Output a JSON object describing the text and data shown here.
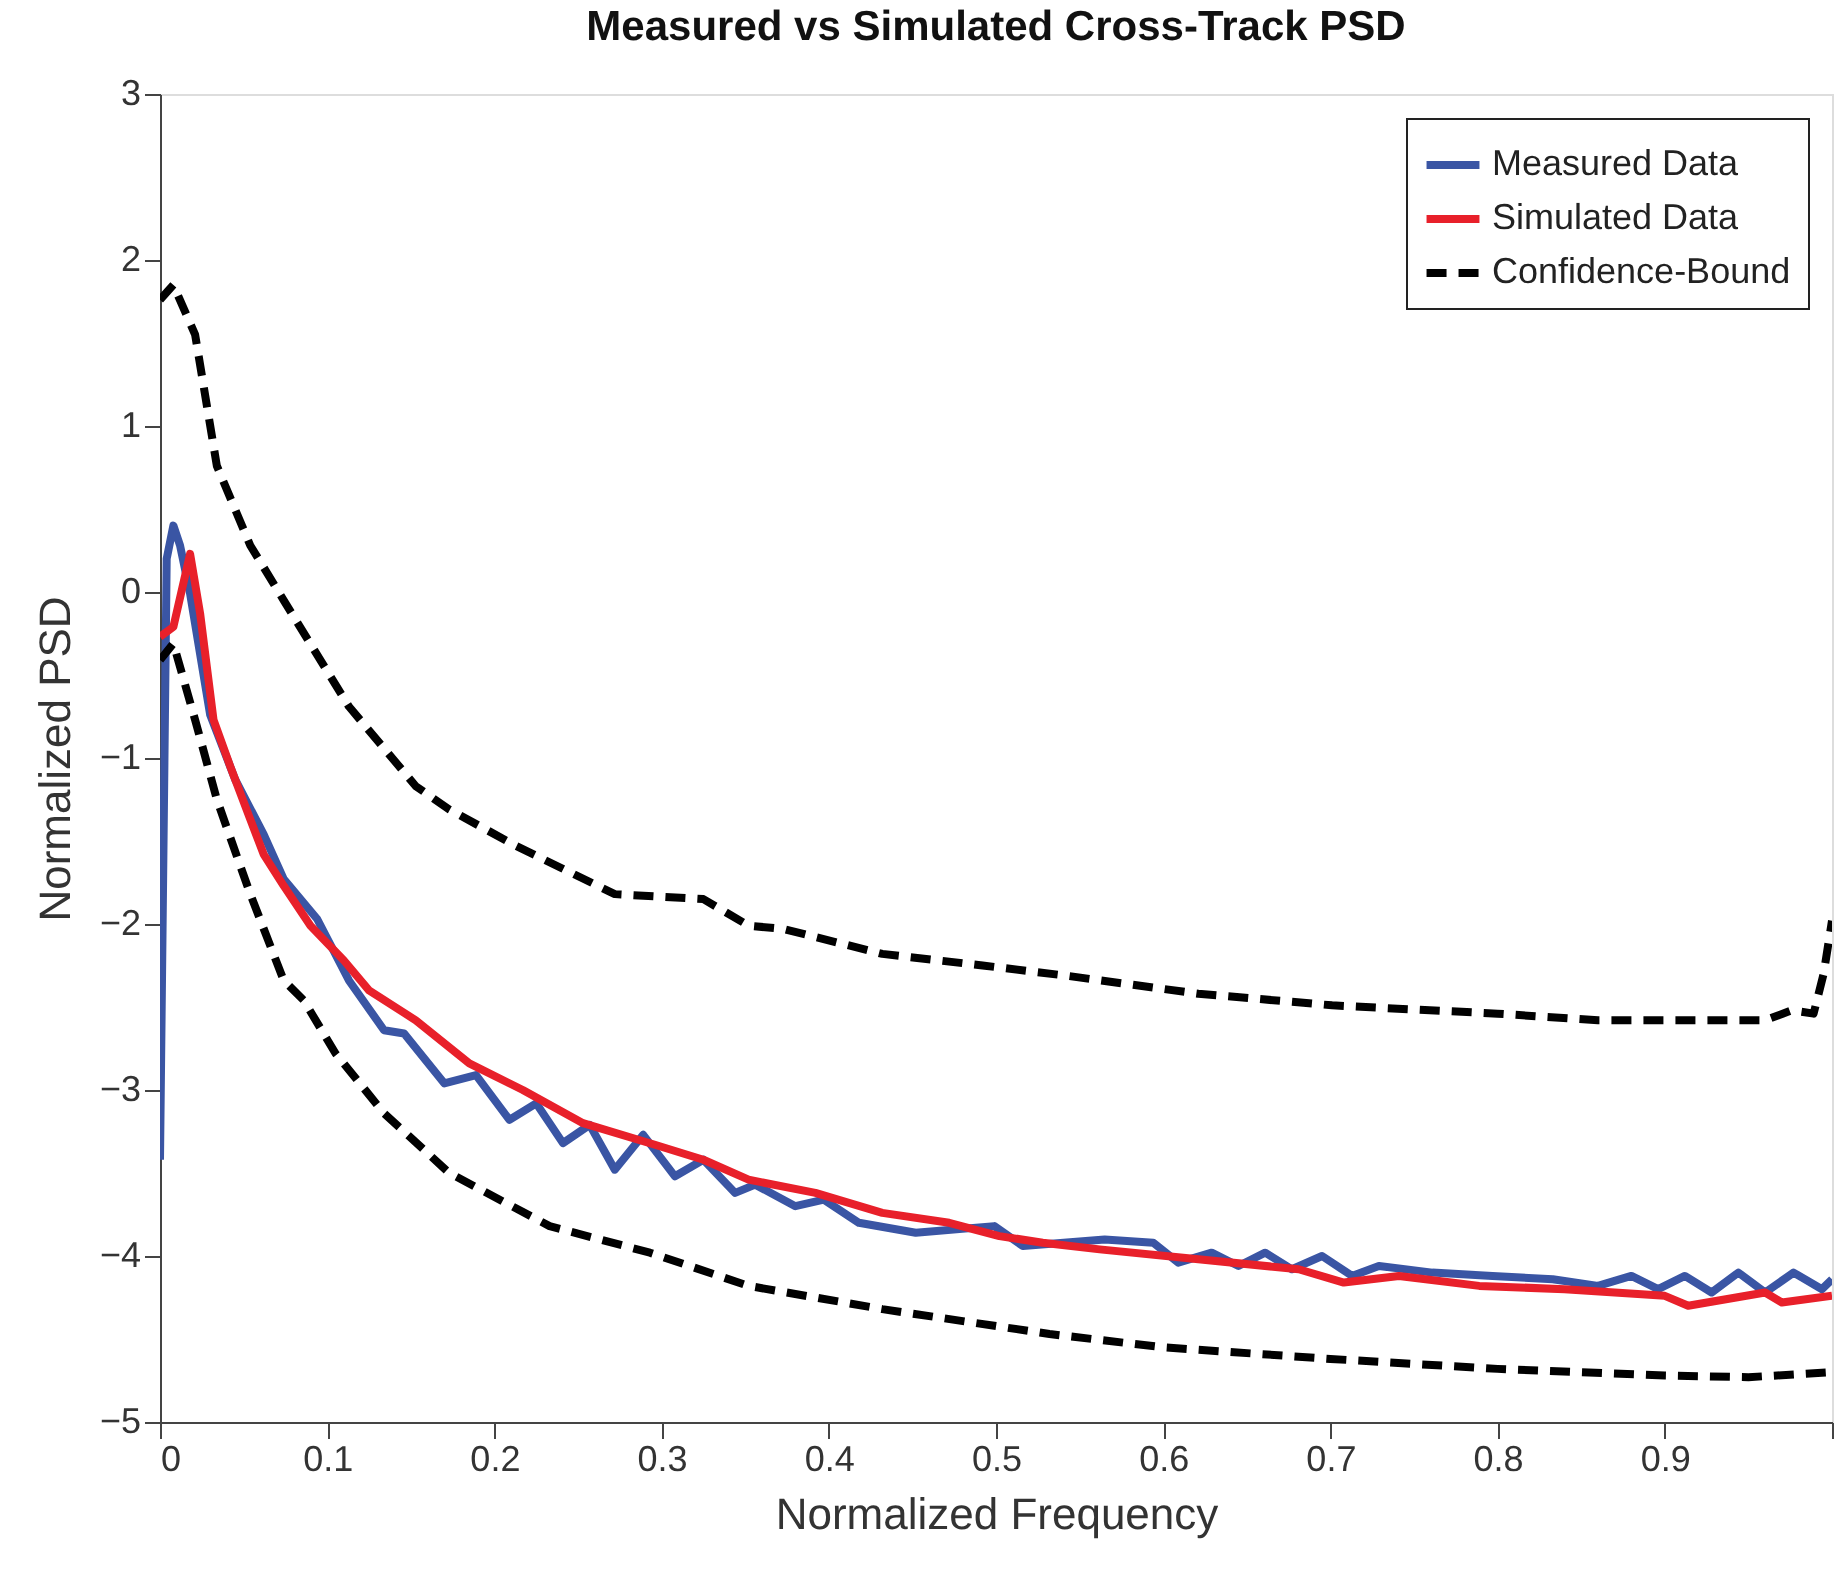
{
  "chart_data": {
    "type": "line",
    "title": "Measured vs Simulated Cross-Track PSD",
    "xlabel": "Normalized Frequency",
    "ylabel": "Normalized PSD",
    "xlim": [
      0,
      1
    ],
    "xticks": [
      {
        "value": 0,
        "label": "0"
      },
      0.1,
      0.2,
      0.3,
      0.4,
      0.5,
      0.6,
      0.7,
      0.8,
      0.9,
      {
        "value": 1,
        "label": null
      }
    ],
    "ylim": [
      -5,
      3
    ],
    "yticks": [
      -5,
      -4,
      -3,
      -2,
      -1,
      0,
      1,
      2,
      3
    ],
    "grid": false,
    "legend": "top right",
    "marker": "none",
    "series": [
      {
        "name": "Measured Data",
        "color": "#3a55a4",
        "line_style": "solid",
        "x": [
          0,
          0.004,
          0.008,
          0.012,
          0.018,
          0.03,
          0.045,
          0.062,
          0.074,
          0.094,
          0.113,
          0.134,
          0.146,
          0.17,
          0.189,
          0.209,
          0.225,
          0.241,
          0.257,
          0.272,
          0.289,
          0.308,
          0.325,
          0.344,
          0.356,
          0.38,
          0.397,
          0.418,
          0.452,
          0.499,
          0.516,
          0.565,
          0.594,
          0.609,
          0.629,
          0.645,
          0.661,
          0.677,
          0.695,
          0.713,
          0.729,
          0.761,
          0.797,
          0.833,
          0.86,
          0.88,
          0.896,
          0.912,
          0.928,
          0.944,
          0.96,
          0.977,
          0.994,
          1.0
        ],
        "values": [
          -3.42,
          0.2,
          0.4,
          0.28,
          -0.01,
          -0.74,
          -1.13,
          -1.46,
          -1.73,
          -1.97,
          -2.34,
          -2.64,
          -2.66,
          -2.96,
          -2.91,
          -3.18,
          -3.08,
          -3.32,
          -3.21,
          -3.48,
          -3.27,
          -3.52,
          -3.42,
          -3.62,
          -3.57,
          -3.7,
          -3.66,
          -3.8,
          -3.86,
          -3.82,
          -3.94,
          -3.9,
          -3.92,
          -4.04,
          -3.98,
          -4.06,
          -3.98,
          -4.08,
          -4.0,
          -4.12,
          -4.06,
          -4.1,
          -4.12,
          -4.14,
          -4.18,
          -4.12,
          -4.2,
          -4.12,
          -4.22,
          -4.1,
          -4.22,
          -4.1,
          -4.2,
          -4.14
        ]
      },
      {
        "name": "Simulated Data",
        "color": "#e8202a",
        "line_style": "solid",
        "x": [
          0,
          0.008,
          0.018,
          0.024,
          0.032,
          0.042,
          0.054,
          0.062,
          0.074,
          0.09,
          0.11,
          0.125,
          0.153,
          0.185,
          0.217,
          0.253,
          0.296,
          0.325,
          0.352,
          0.392,
          0.432,
          0.472,
          0.502,
          0.528,
          0.562,
          0.621,
          0.681,
          0.708,
          0.741,
          0.789,
          0.84,
          0.9,
          0.914,
          0.96,
          0.97,
          1.0
        ],
        "values": [
          -0.27,
          -0.21,
          0.23,
          -0.13,
          -0.77,
          -1.05,
          -1.37,
          -1.58,
          -1.77,
          -2.01,
          -2.22,
          -2.4,
          -2.58,
          -2.84,
          -3.0,
          -3.2,
          -3.33,
          -3.42,
          -3.54,
          -3.62,
          -3.74,
          -3.8,
          -3.88,
          -3.92,
          -3.96,
          -4.02,
          -4.08,
          -4.16,
          -4.12,
          -4.18,
          -4.2,
          -4.24,
          -4.3,
          -4.22,
          -4.28,
          -4.24
        ]
      },
      {
        "name": "Confidence-Bound",
        "color": "#000000",
        "line_style": "dashed",
        "x": [
          0,
          0.008,
          0.021,
          0.034,
          0.054,
          0.074,
          0.113,
          0.153,
          0.173,
          0.213,
          0.272,
          0.325,
          0.352,
          0.373,
          0.432,
          0.492,
          0.541,
          0.621,
          0.701,
          0.8,
          0.86,
          0.96,
          0.976,
          0.989,
          0.995,
          1.0
        ],
        "values": [
          1.76,
          1.85,
          1.55,
          0.76,
          0.28,
          -0.05,
          -0.69,
          -1.17,
          -1.31,
          -1.53,
          -1.82,
          -1.85,
          -2.01,
          -2.03,
          -2.18,
          -2.25,
          -2.31,
          -2.42,
          -2.49,
          -2.54,
          -2.58,
          -2.58,
          -2.52,
          -2.54,
          -2.3,
          -1.98
        ]
      },
      {
        "color": "#000000",
        "line_style": "dashed",
        "x": [
          0,
          0.008,
          0.021,
          0.034,
          0.054,
          0.074,
          0.086,
          0.105,
          0.134,
          0.173,
          0.233,
          0.293,
          0.352,
          0.432,
          0.532,
          0.6,
          0.7,
          0.8,
          0.9,
          0.95,
          1.0
        ],
        "values": [
          -0.41,
          -0.31,
          -0.77,
          -1.25,
          -1.82,
          -2.34,
          -2.46,
          -2.78,
          -3.14,
          -3.5,
          -3.82,
          -3.98,
          -4.18,
          -4.32,
          -4.47,
          -4.55,
          -4.62,
          -4.68,
          -4.72,
          -4.73,
          -4.7
        ]
      }
    ]
  }
}
